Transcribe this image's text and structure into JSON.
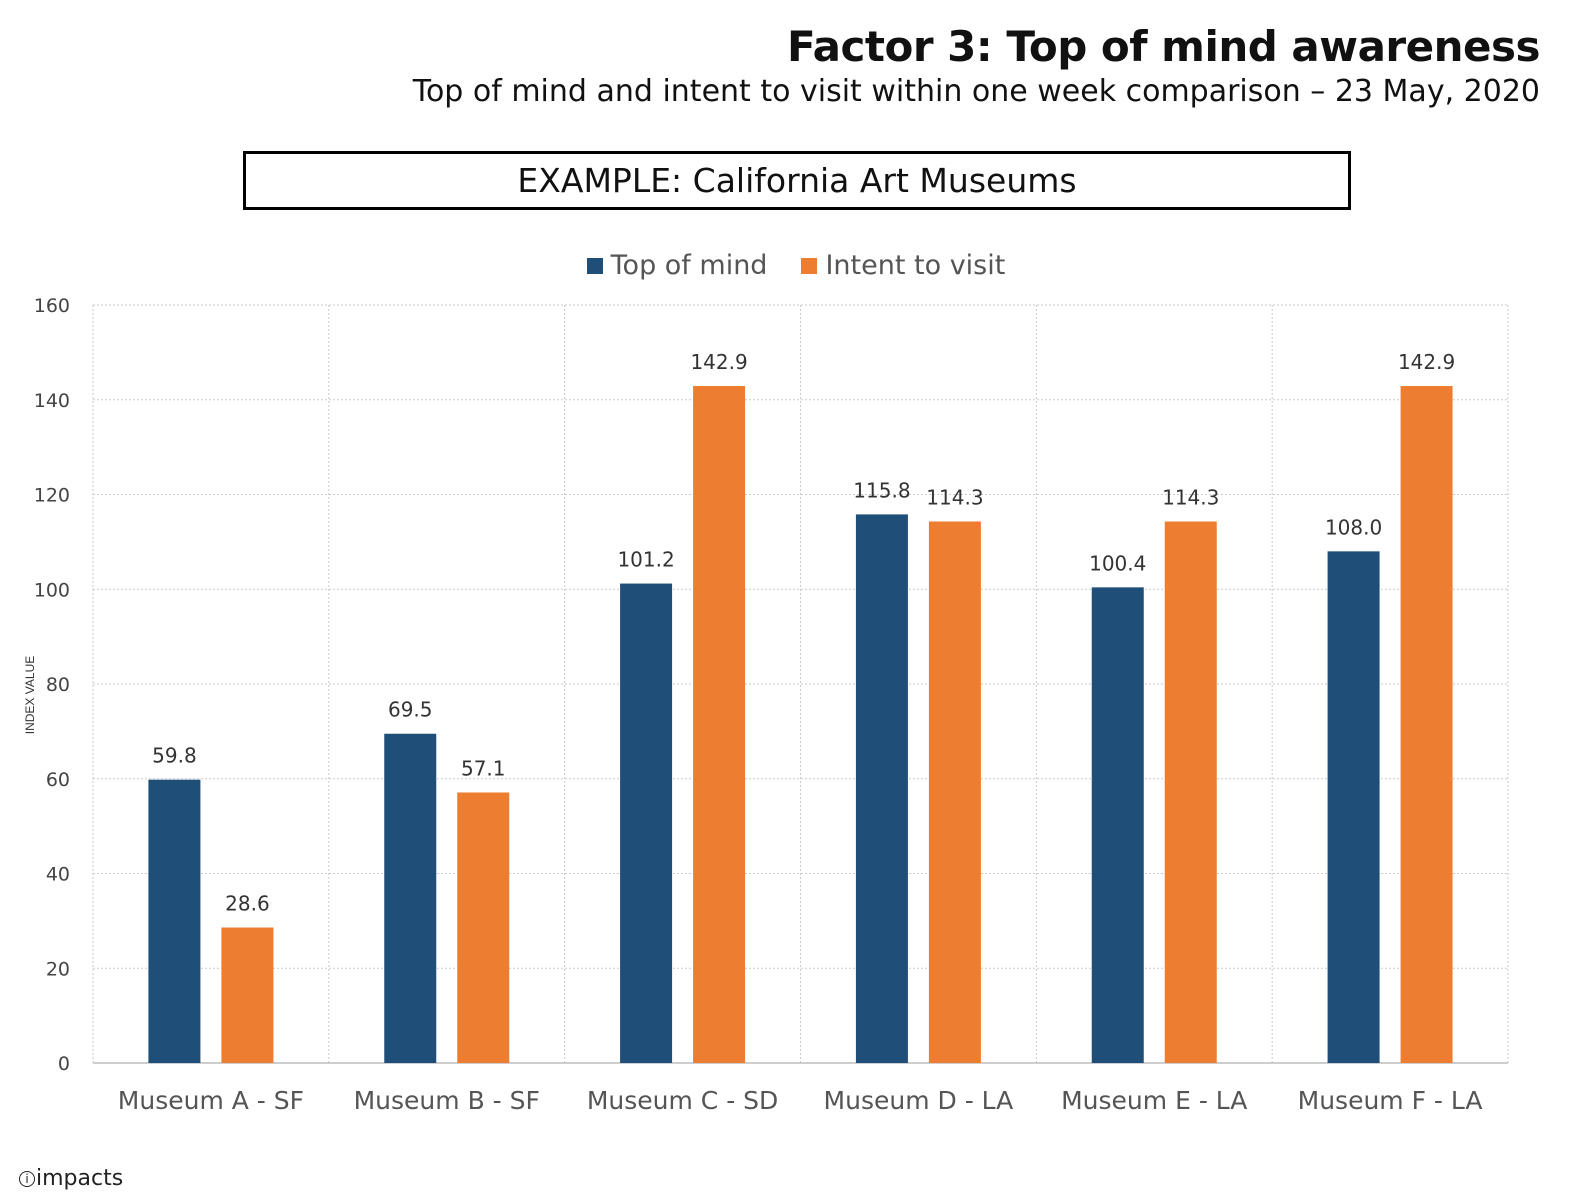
{
  "header": {
    "title": "Factor 3: Top of mind awareness",
    "subtitle": "Top of mind and intent to visit within one week comparison – 23 May, 2020",
    "example_label": "EXAMPLE: California Art Museums"
  },
  "footer": {
    "logo_text": "impacts"
  },
  "colors": {
    "top_of_mind": "#1f4e79",
    "intent_to_visit": "#ed7d31"
  },
  "chart_data": {
    "type": "bar",
    "categories": [
      "Museum A - SF",
      "Museum B - SF",
      "Museum C - SD",
      "Museum D - LA",
      "Museum E - LA",
      "Museum F - LA"
    ],
    "series": [
      {
        "name": "Top of mind",
        "values": [
          59.8,
          69.5,
          101.2,
          115.8,
          100.4,
          108.0
        ]
      },
      {
        "name": "Intent to visit",
        "values": [
          28.6,
          57.1,
          142.9,
          114.3,
          114.3,
          142.9
        ]
      }
    ],
    "ylabel": "INDEX VALUE",
    "xlabel": "",
    "ylim": [
      0,
      160
    ],
    "yticks": [
      0,
      20,
      40,
      60,
      80,
      100,
      120,
      140,
      160
    ],
    "legend_position": "top-center",
    "grid": true
  }
}
